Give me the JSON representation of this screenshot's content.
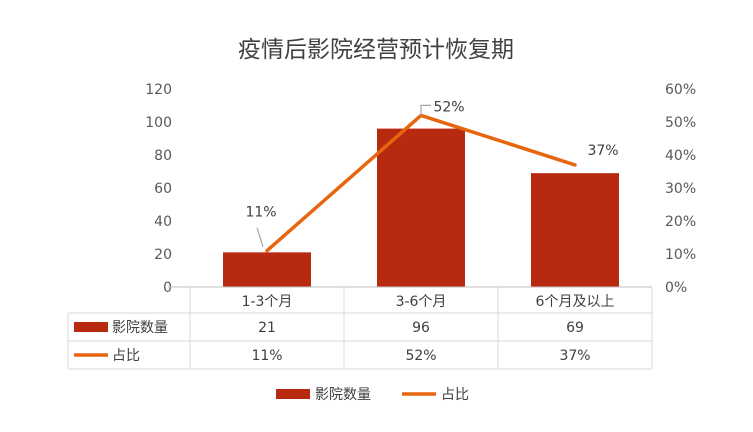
{
  "chart_data": {
    "type": "bar",
    "title": "疫情后影院经营预计恢复期",
    "categories": [
      "1-3个月",
      "3-6个月",
      "6个月及以上"
    ],
    "series": [
      {
        "name": "影院数量",
        "type": "bar",
        "axis": "left",
        "values": [
          21,
          96,
          69
        ],
        "color": "#B82A10"
      },
      {
        "name": "占比",
        "type": "line",
        "axis": "right",
        "values": [
          11,
          52,
          37
        ],
        "unit": "%",
        "color": "#E8650F"
      }
    ],
    "y_left": {
      "min": 0,
      "max": 120,
      "step": 20,
      "ticks": [
        "0",
        "20",
        "40",
        "60",
        "80",
        "100",
        "120"
      ]
    },
    "y_right": {
      "min": 0,
      "max": 60,
      "step": 10,
      "ticks": [
        "0%",
        "10%",
        "20%",
        "30%",
        "40%",
        "50%",
        "60%"
      ]
    },
    "line_labels": [
      "11%",
      "52%",
      "37%"
    ],
    "table": {
      "rows": [
        {
          "name": "影院数量",
          "cells": [
            "21",
            "96",
            "69"
          ]
        },
        {
          "name": "占比",
          "cells": [
            "11%",
            "52%",
            "37%"
          ]
        }
      ]
    },
    "legend": {
      "position": "bottom",
      "items": [
        "影院数量",
        "占比"
      ]
    },
    "grid": false
  }
}
